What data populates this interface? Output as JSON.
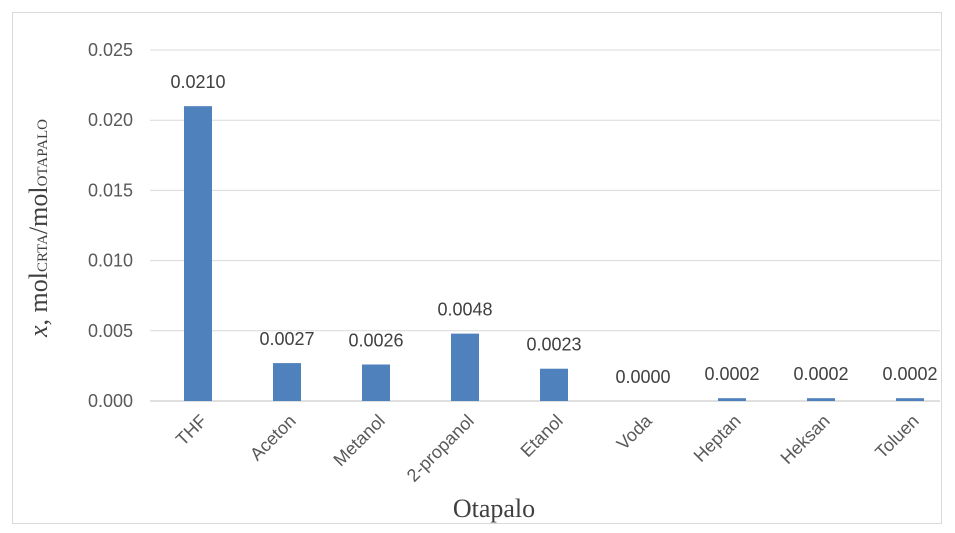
{
  "chart_data": {
    "type": "bar",
    "categories": [
      "THF",
      "Aceton",
      "Metanol",
      "2-propanol",
      "Etanol",
      "Voda",
      "Heptan",
      "Heksan",
      "Toluen"
    ],
    "values": [
      0.021,
      0.0027,
      0.0026,
      0.0048,
      0.0023,
      0.0,
      0.0002,
      0.0002,
      0.0002
    ],
    "data_labels": [
      "0.0210",
      "0.0027",
      "0.0026",
      "0.0048",
      "0.0023",
      "0.0000",
      "0.0002",
      "0.0002",
      "0.0002"
    ],
    "xlabel": "Otapalo",
    "ylabel": {
      "prefix": "x",
      "sep": ", mol",
      "sub1": "CRTA",
      "mid": "/mol",
      "sub2": "OTAPALO"
    },
    "ylim": [
      0,
      0.025
    ],
    "yticks": [
      "0.000",
      "0.005",
      "0.010",
      "0.015",
      "0.020",
      "0.025"
    ],
    "grid": true,
    "legend": "none",
    "colors": {
      "bar": "#4f81bd",
      "grid": "#d9d9d9",
      "axis": "#bfbfbf"
    }
  }
}
